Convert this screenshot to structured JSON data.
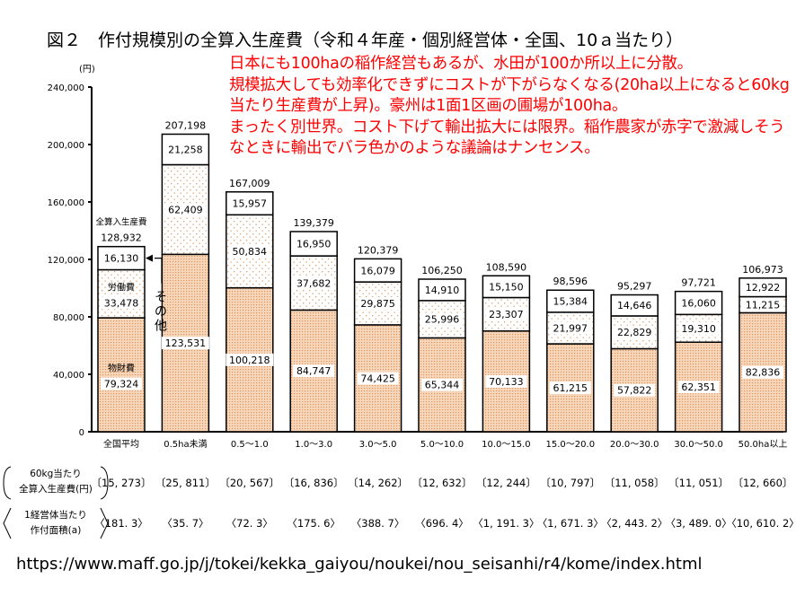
{
  "chart_data": {
    "type": "bar",
    "stacked": true,
    "title": "図２　作付規模別の全算入生産費（令和４年産・個別経営体・全国、10ａ当たり）",
    "ylabel": "(円)",
    "ylim": [
      0,
      240000
    ],
    "yticks": [
      0,
      40000,
      80000,
      120000,
      160000,
      200000,
      240000
    ],
    "ytick_labels": [
      "0",
      "40,000",
      "80,000",
      "120,000",
      "160,000",
      "200,000",
      "240,000"
    ],
    "grid": false,
    "categories": [
      "全国平均",
      "0.5ha未満",
      "0.5～1.0",
      "1.0～3.0",
      "3.0～5.0",
      "5.0～10.0",
      "10.0～15.0",
      "15.0～20.0",
      "20.0～30.0",
      "30.0～50.0",
      "50.0ha以上"
    ],
    "series": [
      {
        "name": "物財費",
        "values": [
          79324,
          123531,
          100218,
          84747,
          74425,
          65344,
          70133,
          61215,
          57822,
          62351,
          82836
        ],
        "labels": [
          "79,324",
          "123,531",
          "100,218",
          "84,747",
          "74,425",
          "65,344",
          "70,133",
          "61,215",
          "57,822",
          "62,351",
          "82,836"
        ]
      },
      {
        "name": "労働費",
        "values": [
          33478,
          62409,
          50834,
          37682,
          29875,
          25996,
          23307,
          21997,
          22829,
          19310,
          11215
        ],
        "labels": [
          "33,478",
          "62,409",
          "50,834",
          "37,682",
          "29,875",
          "25,996",
          "23,307",
          "21,997",
          "22,829",
          "19,310",
          "11,215"
        ]
      },
      {
        "name": "その他",
        "values": [
          16130,
          21258,
          15957,
          16950,
          16079,
          14910,
          15150,
          15384,
          14646,
          16060,
          12922
        ],
        "labels": [
          "16,130",
          "21,258",
          "15,957",
          "16,950",
          "16,079",
          "14,910",
          "15,150",
          "15,384",
          "14,646",
          "16,060",
          "12,922"
        ]
      }
    ],
    "totals_name": "全算入生産費",
    "totals": [
      128932,
      207198,
      167009,
      139379,
      120379,
      106250,
      108590,
      98596,
      95297,
      97721,
      106973
    ],
    "total_labels": [
      "128,932",
      "207,198",
      "167,009",
      "139,379",
      "120,379",
      "106,250",
      "108,590",
      "98,596",
      "95,297",
      "97,721",
      "106,973"
    ],
    "colors": {
      "material": "#f2c9a4",
      "material_dot": "#e0935a",
      "labor_dot": "#d9a070",
      "axis": "#000000"
    }
  },
  "table": {
    "row1_label_line1": "60kg当たり",
    "row1_label_line2": "全算入生産費(円)",
    "row1_values": [
      "〔15, 273〕",
      "〔25, 811〕",
      "〔20, 567〕",
      "〔16, 836〕",
      "〔14, 262〕",
      "〔12, 632〕",
      "〔12, 244〕",
      "〔10, 797〕",
      "〔11, 058〕",
      "〔11, 051〕",
      "〔12, 660〕"
    ],
    "row2_label_line1": "1経営体当たり",
    "row2_label_line2": "作付面積(a)",
    "row2_values": [
      "〈181. 3〉",
      "〈35. 7〉",
      "〈72. 3〉",
      "〈175. 6〉",
      "〈388. 7〉",
      "〈696. 4〉",
      "〈1, 191. 3〉",
      "〈1, 671. 3〉",
      "〈2, 443. 2〉",
      "〈3, 489. 0〉",
      "〈10, 610. 2〉"
    ]
  },
  "annotation_note": "日本にも100haの稲作経営もあるが、水田が100か所以上に分散。\n規模拡大しても効率化できずにコストが下がらなくなる(20ha以上になると60kg当たり生産費が上昇)。豪州は1面1区画の圃場が100ha。\nまったく別世界。コスト下げて輸出拡大には限界。稲作農家が赤字で激減しそうなときに輸出でバラ色かのような議論はナンセンス。",
  "source_url": "https://www.maff.go.jp/j/tokei/kekka_gaiyou/noukei/nou_seisanhi/r4/kome/index.html"
}
